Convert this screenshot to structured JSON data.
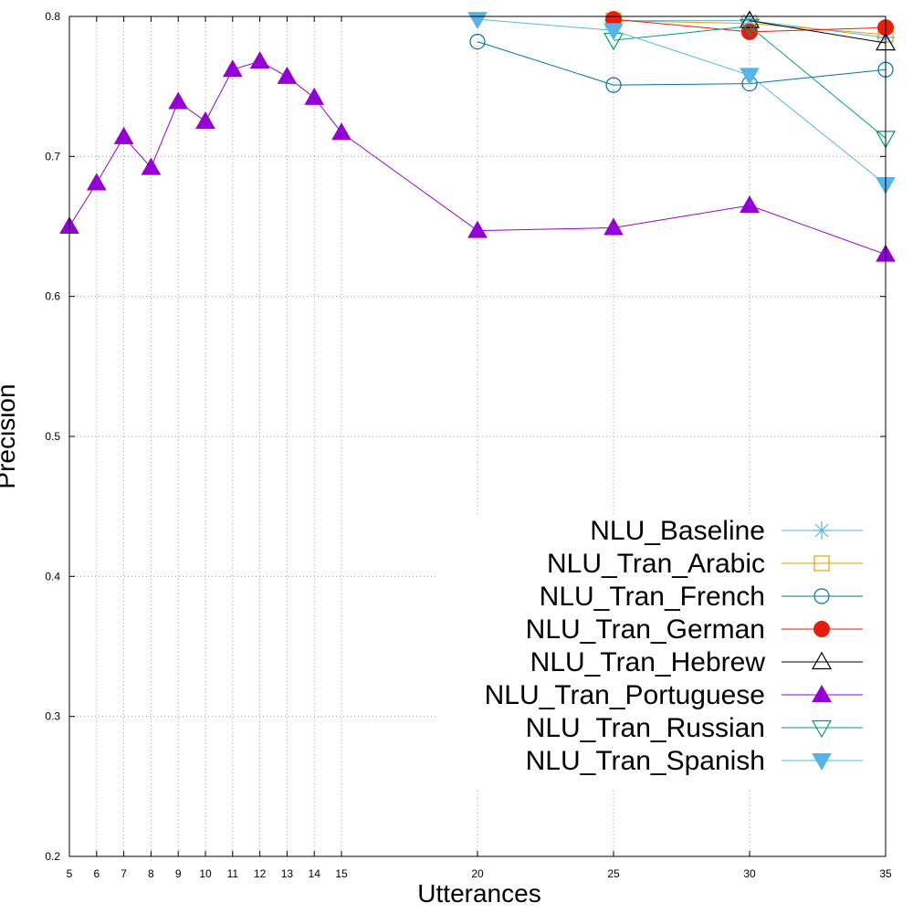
{
  "chart_data": {
    "type": "line",
    "xlabel": "Utterances",
    "ylabel": "Precision",
    "xlim": [
      5,
      35
    ],
    "ylim": [
      0.2,
      0.8
    ],
    "xticks": [
      5,
      6,
      7,
      8,
      9,
      10,
      11,
      12,
      13,
      14,
      15,
      20,
      25,
      30,
      35
    ],
    "xtick_labels": [
      "5",
      "6",
      "7",
      "8",
      "9",
      "10",
      "11",
      "12",
      "13",
      "14",
      "15",
      "20",
      "25",
      "30",
      "35"
    ],
    "yticks": [
      0.2,
      0.3,
      0.4,
      0.5,
      0.6,
      0.7,
      0.8
    ],
    "ytick_labels": [
      "0.2",
      "0.3",
      "0.4",
      "0.5",
      "0.6",
      "0.7",
      "0.8"
    ],
    "grid": true,
    "legend_position": "bottom-right",
    "series": [
      {
        "name": "NLU_Baseline",
        "color": "#56b4e9",
        "marker": "star",
        "x": [
          25,
          30,
          35
        ],
        "y": [
          0.797,
          0.797,
          0.785
        ]
      },
      {
        "name": "NLU_Tran_Arabic",
        "color": "#e69f00",
        "marker": "square-open",
        "x": [
          25,
          30,
          35
        ],
        "y": [
          0.797,
          0.795,
          0.787
        ]
      },
      {
        "name": "NLU_Tran_French",
        "color": "#0072b2",
        "marker": "circle-open",
        "x": [
          20,
          25,
          30,
          35
        ],
        "y": [
          0.782,
          0.751,
          0.752,
          0.762
        ]
      },
      {
        "name": "NLU_Tran_German",
        "color": "#e51e10",
        "marker": "circle-filled",
        "x": [
          25,
          30,
          35
        ],
        "y": [
          0.798,
          0.789,
          0.792
        ]
      },
      {
        "name": "NLU_Tran_Hebrew",
        "color": "#000000",
        "marker": "triangle-open",
        "x": [
          30,
          35
        ],
        "y": [
          0.797,
          0.781
        ]
      },
      {
        "name": "NLU_Tran_Portuguese",
        "color": "#9400d3",
        "marker": "triangle-filled",
        "x": [
          5,
          6,
          7,
          8,
          9,
          10,
          11,
          12,
          13,
          14,
          15,
          20,
          25,
          30,
          35
        ],
        "y": [
          0.65,
          0.681,
          0.714,
          0.692,
          0.739,
          0.725,
          0.762,
          0.768,
          0.757,
          0.742,
          0.717,
          0.647,
          0.649,
          0.665,
          0.63
        ]
      },
      {
        "name": "NLU_Tran_Russian",
        "color": "#009e73",
        "marker": "triangle-down-open",
        "x": [
          25,
          30,
          35
        ],
        "y": [
          0.783,
          0.793,
          0.713
        ]
      },
      {
        "name": "NLU_Tran_Spanish",
        "color": "#56b4e9",
        "marker": "triangle-down-filled",
        "x": [
          20,
          25,
          30,
          35
        ],
        "y": [
          0.798,
          0.79,
          0.758,
          0.68
        ]
      }
    ]
  }
}
